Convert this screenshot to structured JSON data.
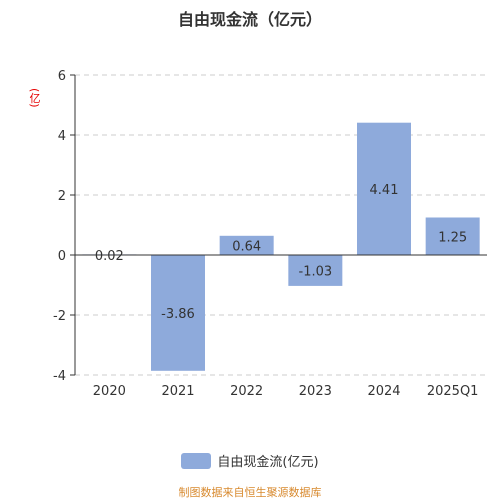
{
  "chart_data": {
    "type": "bar",
    "title": "自由现金流（亿元）",
    "y_unit_label": "(亿)",
    "categories": [
      "2020",
      "2021",
      "2022",
      "2023",
      "2024",
      "2025Q1"
    ],
    "series": [
      {
        "name": "自由现金流(亿元)",
        "values": [
          0.02,
          -3.86,
          0.64,
          -1.03,
          4.41,
          1.25
        ]
      }
    ],
    "data_labels": [
      "0.02",
      "-3.86",
      "0.64",
      "-1.03",
      "4.41",
      "1.25"
    ],
    "ylim": [
      -4,
      6
    ],
    "yticks": [
      -4,
      -2,
      0,
      2,
      4,
      6
    ],
    "ytick_labels": [
      "-4",
      "-2",
      "0",
      "2",
      "4",
      "6"
    ],
    "grid": true,
    "legend_position": "bottom",
    "colors": {
      "bar": "#8eaadb",
      "grid": "#cccccc",
      "axis": "#333333",
      "text": "#333333"
    }
  },
  "footer": {
    "source": "制图数据来自恒生聚源数据库"
  }
}
